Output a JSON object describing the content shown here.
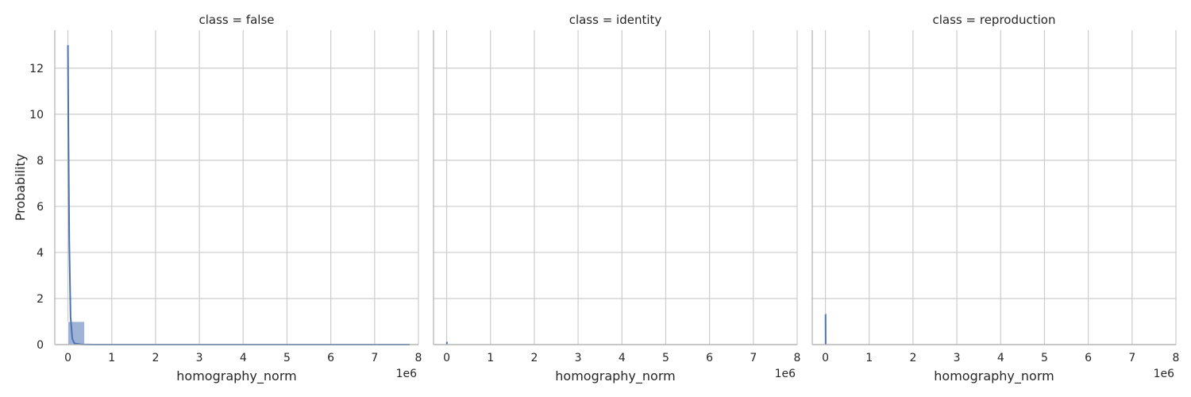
{
  "chart_data": [
    {
      "type": "histogram",
      "title": "class = false",
      "xlabel": "homography_norm",
      "ylabel": "Probability",
      "x_offset_label": "1e6",
      "xlim": [
        -300000,
        8000000
      ],
      "ylim": [
        0,
        13.65
      ],
      "x_ticks": [
        0,
        1,
        2,
        3,
        4,
        5,
        6,
        7,
        8
      ],
      "y_ticks": [
        0,
        2,
        4,
        6,
        8,
        10,
        12
      ],
      "grid": true,
      "colors": {
        "bar": "#9fb3d6",
        "kde": "#4c72b0"
      },
      "bars": [
        {
          "x0": 0,
          "x1": 380000,
          "value": 1.0
        }
      ],
      "kde": {
        "x": [
          0,
          10000,
          30000,
          60000,
          100000,
          150000,
          300000,
          600000,
          7800000
        ],
        "y": [
          13.0,
          9.5,
          4.5,
          1.2,
          0.25,
          0.05,
          0.01,
          0.0,
          0.0
        ]
      }
    },
    {
      "type": "histogram",
      "title": "class = identity",
      "xlabel": "homography_norm",
      "x_offset_label": "1e6",
      "xlim": [
        -300000,
        8000000
      ],
      "ylim": [
        0,
        13.65
      ],
      "x_ticks": [
        0,
        1,
        2,
        3,
        4,
        5,
        6,
        7,
        8
      ],
      "grid": true,
      "colors": {
        "bar": "#9fb3d6",
        "kde": "#4c72b0"
      },
      "bars": [],
      "kde": {
        "x": [
          0,
          4000,
          8000
        ],
        "y": [
          0.1,
          0.1,
          0.0
        ]
      }
    },
    {
      "type": "histogram",
      "title": "class = reproduction",
      "xlabel": "homography_norm",
      "x_offset_label": "1e6",
      "xlim": [
        -300000,
        8000000
      ],
      "ylim": [
        0,
        13.65
      ],
      "x_ticks": [
        0,
        1,
        2,
        3,
        4,
        5,
        6,
        7,
        8
      ],
      "grid": true,
      "colors": {
        "bar": "#9fb3d6",
        "kde": "#4c72b0"
      },
      "bars": [],
      "kde": {
        "x": [
          0,
          3000,
          6000
        ],
        "y": [
          1.3,
          1.3,
          0.0
        ]
      }
    }
  ]
}
